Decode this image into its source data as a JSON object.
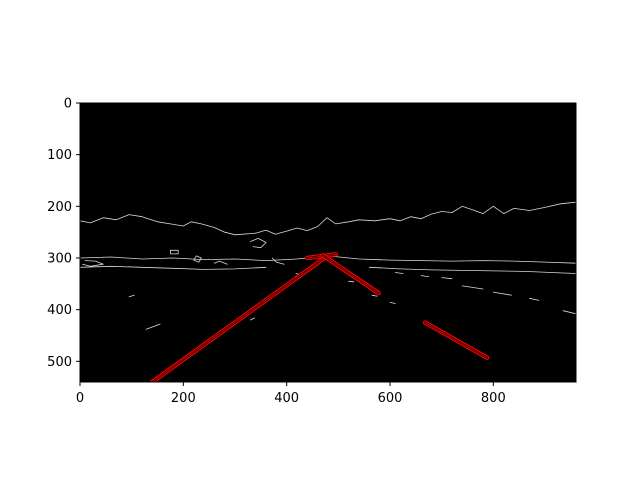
{
  "chart_data": {
    "type": "image",
    "title": "",
    "xlabel": "",
    "ylabel": "",
    "xlim": [
      0,
      960
    ],
    "ylim": [
      540,
      0
    ],
    "x_ticks": [
      0,
      200,
      400,
      600,
      800
    ],
    "y_ticks": [
      0,
      100,
      200,
      300,
      400,
      500
    ],
    "x_tick_labels": [
      "0",
      "200",
      "400",
      "600",
      "800"
    ],
    "y_tick_labels": [
      "0",
      "100",
      "200",
      "300",
      "400",
      "500"
    ],
    "grid": false,
    "background_color": "#000000",
    "edge_color": "#d9d9d9",
    "lane_color": "#ff0000",
    "lane_lines": [
      {
        "segments": [
          [
            140,
            540
          ],
          [
            480,
            295
          ]
        ]
      },
      {
        "segments": [
          [
            440,
            300
          ],
          [
            495,
            293
          ]
        ]
      },
      {
        "segments": [
          [
            470,
            295
          ],
          [
            578,
            368
          ]
        ]
      },
      {
        "segments": [
          [
            668,
            425
          ],
          [
            788,
            493
          ]
        ]
      }
    ],
    "edge_contours": [
      [
        [
          0,
          228
        ],
        [
          20,
          232
        ],
        [
          45,
          222
        ],
        [
          70,
          226
        ],
        [
          95,
          216
        ],
        [
          120,
          220
        ],
        [
          150,
          230
        ],
        [
          175,
          234
        ],
        [
          200,
          238
        ],
        [
          215,
          230
        ],
        [
          235,
          234
        ],
        [
          260,
          241
        ],
        [
          280,
          250
        ],
        [
          300,
          255
        ],
        [
          340,
          252
        ],
        [
          360,
          246
        ],
        [
          378,
          254
        ],
        [
          400,
          248
        ],
        [
          420,
          242
        ],
        [
          440,
          247
        ],
        [
          460,
          239
        ],
        [
          478,
          222
        ],
        [
          495,
          234
        ],
        [
          520,
          230
        ],
        [
          540,
          226
        ],
        [
          570,
          228
        ],
        [
          600,
          224
        ],
        [
          620,
          228
        ],
        [
          640,
          220
        ],
        [
          660,
          224
        ],
        [
          680,
          215
        ],
        [
          700,
          210
        ],
        [
          720,
          212
        ],
        [
          740,
          200
        ],
        [
          760,
          207
        ],
        [
          780,
          214
        ],
        [
          800,
          200
        ],
        [
          820,
          214
        ],
        [
          840,
          204
        ],
        [
          870,
          208
        ],
        [
          900,
          202
        ],
        [
          930,
          195
        ],
        [
          960,
          192
        ]
      ],
      [
        [
          0,
          300
        ],
        [
          60,
          298
        ],
        [
          120,
          302
        ],
        [
          180,
          300
        ],
        [
          240,
          303
        ],
        [
          300,
          302
        ],
        [
          360,
          305
        ],
        [
          420,
          302
        ],
        [
          480,
          296
        ],
        [
          540,
          302
        ],
        [
          600,
          304
        ],
        [
          660,
          305
        ],
        [
          720,
          306
        ],
        [
          780,
          305
        ],
        [
          840,
          306
        ],
        [
          900,
          308
        ],
        [
          960,
          310
        ]
      ],
      [
        [
          0,
          318
        ],
        [
          60,
          316
        ],
        [
          120,
          318
        ],
        [
          180,
          320
        ],
        [
          240,
          322
        ],
        [
          300,
          321
        ],
        [
          360,
          318
        ]
      ],
      [
        [
          560,
          318
        ],
        [
          620,
          321
        ],
        [
          680,
          323
        ],
        [
          740,
          324
        ],
        [
          800,
          325
        ],
        [
          860,
          326
        ],
        [
          960,
          330
        ]
      ],
      [
        [
          10,
          305
        ],
        [
          30,
          306
        ],
        [
          45,
          312
        ],
        [
          20,
          316
        ],
        [
          5,
          312
        ]
      ],
      [
        [
          175,
          285
        ],
        [
          190,
          285
        ],
        [
          190,
          292
        ],
        [
          175,
          292
        ],
        [
          175,
          285
        ]
      ],
      [
        [
          225,
          296
        ],
        [
          235,
          300
        ],
        [
          230,
          308
        ],
        [
          220,
          304
        ],
        [
          225,
          296
        ]
      ],
      [
        [
          330,
          268
        ],
        [
          345,
          262
        ],
        [
          360,
          270
        ],
        [
          350,
          280
        ],
        [
          335,
          278
        ]
      ],
      [
        [
          610,
          328
        ],
        [
          625,
          330
        ]
      ],
      [
        [
          660,
          334
        ],
        [
          675,
          336
        ]
      ],
      [
        [
          700,
          338
        ],
        [
          720,
          340
        ]
      ],
      [
        [
          740,
          354
        ],
        [
          780,
          360
        ]
      ],
      [
        [
          800,
          366
        ],
        [
          835,
          372
        ]
      ],
      [
        [
          870,
          378
        ],
        [
          888,
          382
        ]
      ],
      [
        [
          935,
          402
        ],
        [
          960,
          408
        ]
      ],
      [
        [
          600,
          386
        ],
        [
          610,
          388
        ]
      ],
      [
        [
          565,
          372
        ],
        [
          575,
          374
        ]
      ],
      [
        [
          95,
          375
        ],
        [
          105,
          372
        ]
      ],
      [
        [
          128,
          438
        ],
        [
          155,
          428
        ]
      ],
      [
        [
          330,
          420
        ],
        [
          338,
          416
        ]
      ],
      [
        [
          520,
          345
        ],
        [
          530,
          346
        ]
      ],
      [
        [
          418,
          330
        ],
        [
          428,
          333
        ]
      ],
      [
        [
          372,
          300
        ],
        [
          380,
          308
        ],
        [
          395,
          312
        ]
      ],
      [
        [
          260,
          310
        ],
        [
          270,
          306
        ],
        [
          285,
          312
        ]
      ]
    ]
  }
}
